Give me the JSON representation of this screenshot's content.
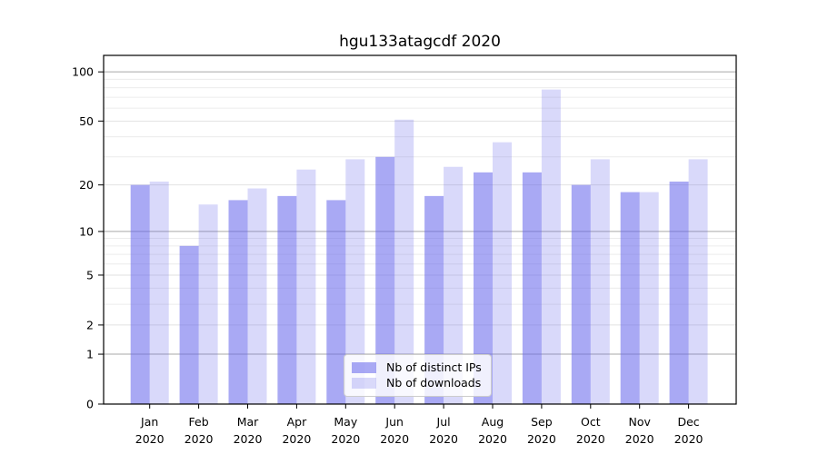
{
  "title": "hgu133atagcdf 2020",
  "legend": {
    "items": [
      {
        "label": "Nb of distinct IPs",
        "color": "rgba(98,98,235,0.55)"
      },
      {
        "label": "Nb of downloads",
        "color": "rgba(98,98,235,0.24)"
      }
    ]
  },
  "axes": {
    "y_tick_labels": [
      100,
      50,
      20,
      10,
      5,
      2,
      1,
      0
    ],
    "x_tick_labels_line1": [
      "Jan",
      "Feb",
      "Mar",
      "Apr",
      "May",
      "Jun",
      "Jul",
      "Aug",
      "Sep",
      "Oct",
      "Nov",
      "Dec"
    ],
    "x_tick_labels_line2": [
      "2020",
      "2020",
      "2020",
      "2020",
      "2020",
      "2020",
      "2020",
      "2020",
      "2020",
      "2020",
      "2020",
      "2020"
    ]
  },
  "colors": {
    "bar_distinct_ips": "rgba(98,98,235,0.55)",
    "bar_downloads": "rgba(98,98,235,0.24)",
    "gridline_decade": "#a9a9a9",
    "gridline_labeled": "#e2e2e2",
    "gridline_minor": "#ececec",
    "spine": "#000000"
  },
  "chart_data": {
    "type": "bar",
    "title": "hgu133atagcdf 2020",
    "xlabel": "",
    "ylabel": "",
    "categories": [
      "Jan 2020",
      "Feb 2020",
      "Mar 2020",
      "Apr 2020",
      "May 2020",
      "Jun 2020",
      "Jul 2020",
      "Aug 2020",
      "Sep 2020",
      "Oct 2020",
      "Nov 2020",
      "Dec 2020"
    ],
    "series": [
      {
        "name": "Nb of distinct IPs",
        "values": [
          20,
          8,
          16,
          17,
          16,
          30,
          17,
          24,
          24,
          20,
          18,
          21
        ]
      },
      {
        "name": "Nb of downloads",
        "values": [
          21,
          15,
          19,
          25,
          29,
          51,
          26,
          37,
          78,
          29,
          18,
          29
        ]
      }
    ],
    "yscale": "log10(1+x)",
    "ylim": [
      0,
      126
    ],
    "y_ticks": [
      0,
      1,
      2,
      5,
      10,
      20,
      50,
      100
    ],
    "y_decade_gridlines": [
      1,
      10,
      100
    ],
    "y_labeled_gridlines": [
      2,
      5,
      20,
      50
    ],
    "y_minor_gridlines": [
      3,
      4,
      6,
      7,
      8,
      9,
      30,
      40,
      60,
      70,
      80,
      90
    ],
    "grid": true,
    "legend_position": "lower-center-inside"
  }
}
